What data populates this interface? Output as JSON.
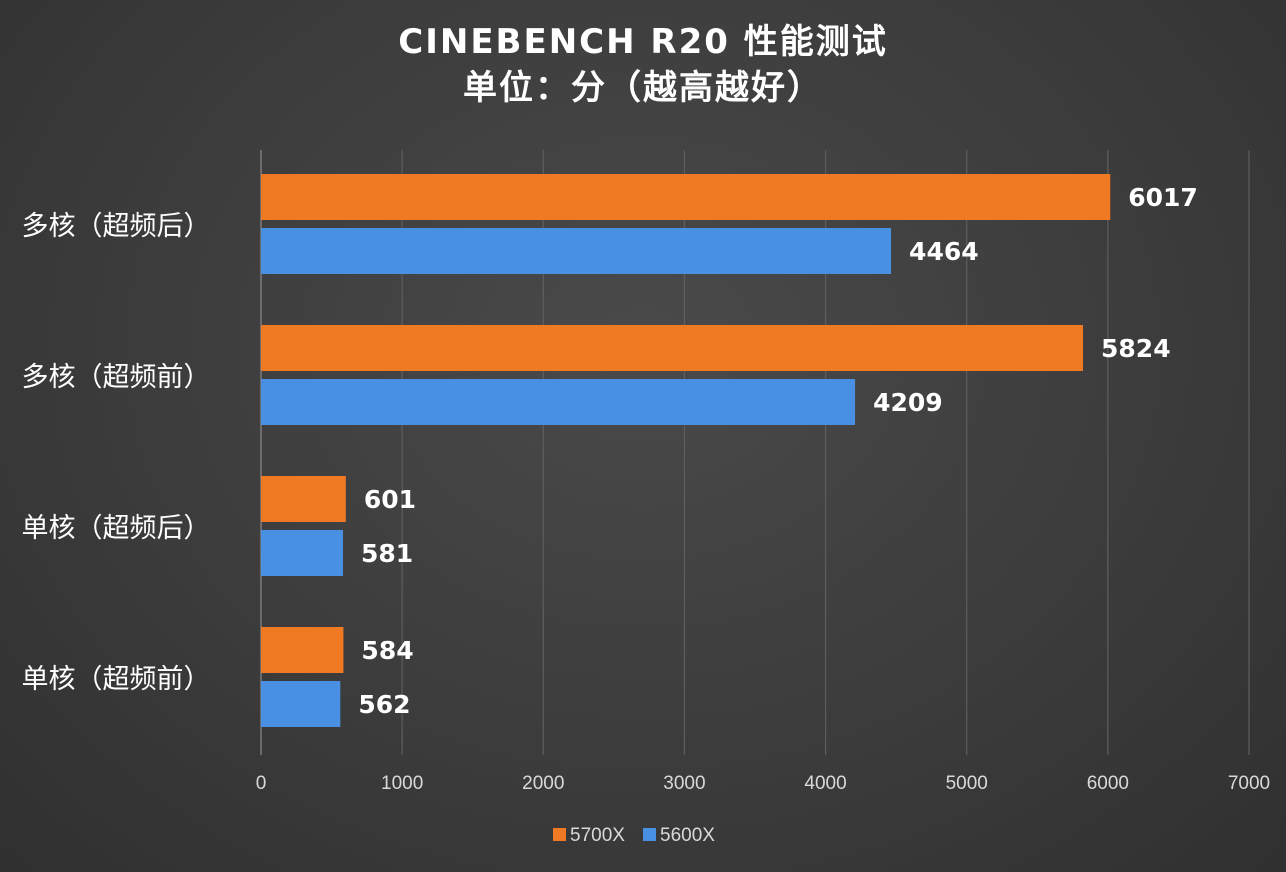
{
  "chart_data": {
    "type": "bar",
    "orientation": "horizontal",
    "title": "CINEBENCH R20 性能测试",
    "subtitle": "单位：分（越高越好）",
    "categories": [
      "多核（超频后）",
      "多核（超频前）",
      "单核（超频后）",
      "单核（超频前）"
    ],
    "series": [
      {
        "name": "5700X",
        "color": "#f07a23",
        "values": [
          6017,
          5824,
          601,
          584
        ]
      },
      {
        "name": "5600X",
        "color": "#4a90e2",
        "values": [
          4464,
          4209,
          581,
          562
        ]
      }
    ],
    "xlim": [
      0,
      7000
    ],
    "xticks": [
      0,
      1000,
      2000,
      3000,
      4000,
      5000,
      6000,
      7000
    ],
    "grid": true,
    "legend_position": "bottom-center",
    "data_labels": true
  }
}
